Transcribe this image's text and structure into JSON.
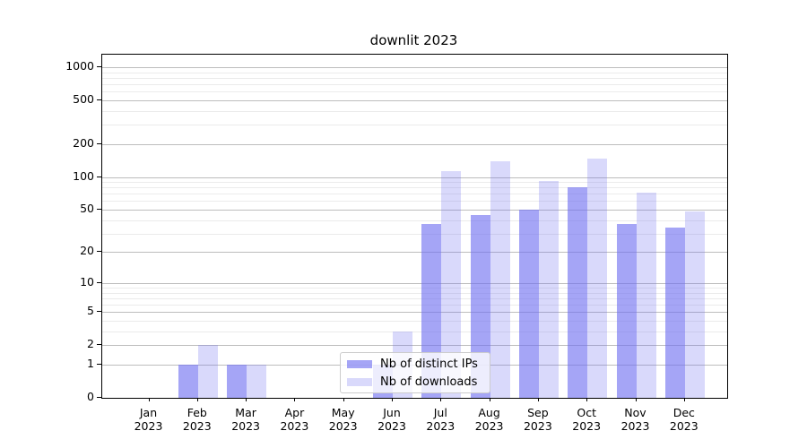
{
  "chart_data": {
    "type": "bar",
    "title": "downlit 2023",
    "categories": [
      "Jan",
      "Feb",
      "Mar",
      "Apr",
      "May",
      "Jun",
      "Jul",
      "Aug",
      "Sep",
      "Oct",
      "Nov",
      "Dec"
    ],
    "year": "2023",
    "series": [
      {
        "name": "Nb of distinct IPs",
        "color": "rgba(110,110,240,0.62)",
        "values": [
          0,
          1,
          1,
          0,
          0,
          1,
          37,
          45,
          50,
          81,
          37,
          34
        ]
      },
      {
        "name": "Nb of downloads",
        "color": "rgba(110,110,240,0.26)",
        "values": [
          0,
          2,
          1,
          0,
          0,
          3,
          113,
          140,
          92,
          148,
          72,
          48
        ]
      }
    ],
    "scale": "log10(1+v)",
    "ylim": [
      0,
      1300
    ],
    "y_ticks": [
      1000,
      500,
      200,
      100,
      50,
      20,
      10,
      5,
      2,
      1,
      0
    ],
    "minor_gridlines": [
      3,
      4,
      6,
      7,
      8,
      9,
      30,
      40,
      60,
      70,
      80,
      90,
      300,
      400,
      600,
      700,
      800,
      900
    ],
    "grid": "on",
    "legend_position": "inside lower-center"
  },
  "colors": {
    "bar_distinct_ips": "rgba(110,110,240,0.62)",
    "bar_downloads": "rgba(110,110,240,0.26)",
    "grid_major": "#bdbdbd",
    "grid_minor": "#ebebeb",
    "axis": "#000000",
    "legend_border": "#cccccc"
  }
}
